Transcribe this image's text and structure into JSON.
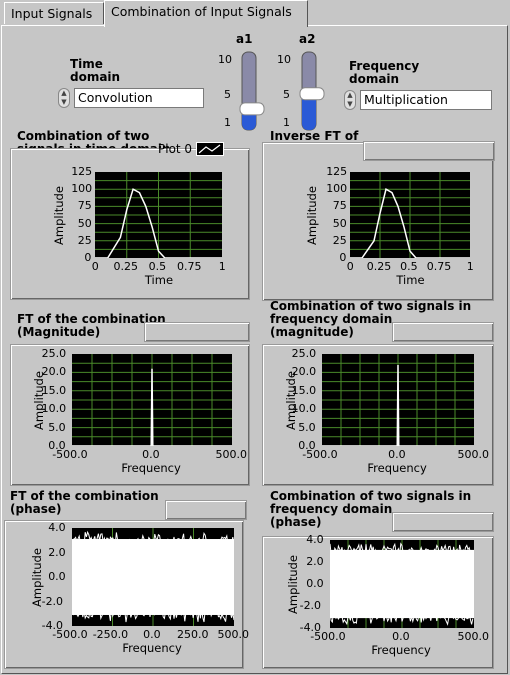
{
  "tabs": [
    {
      "label": "Input Signals",
      "active": false
    },
    {
      "label": "Combination of Input Signals",
      "active": true
    }
  ],
  "controls": {
    "time_domain_label": "Time\ndomain",
    "time_domain_value": "Convolution",
    "freq_domain_label": "Frequency\ndomain",
    "freq_domain_value": "Multiplication",
    "a1": {
      "label": "a1",
      "ticks": [
        "10",
        "5",
        "1"
      ],
      "value": 3
    },
    "a2": {
      "label": "a2",
      "ticks": [
        "10",
        "5",
        "1"
      ],
      "value": 5
    }
  },
  "colors": {
    "plot_bg": "#000000",
    "grid": "#4a8a2a",
    "trace": "#ffffff",
    "slider_fill": "#2a5ad6"
  },
  "charts": [
    {
      "title": "Combination of two\nsignals in time domain",
      "legend": "Plot 0",
      "ylabel": "Amplitude",
      "xlabel": "Time",
      "xticks": [
        "0",
        "0.25",
        "0.5",
        "0.75",
        "1"
      ],
      "yticks": [
        "0",
        "25",
        "50",
        "75",
        "100",
        "125"
      ]
    },
    {
      "title": "Inverse FT of\nthe combination",
      "ylabel": "Amplitude",
      "xlabel": "Time",
      "xticks": [
        "0",
        "0.25",
        "0.5",
        "0.75",
        "1"
      ],
      "yticks": [
        "0",
        "25",
        "50",
        "75",
        "100",
        "125"
      ]
    },
    {
      "title": "FT of the combination\n(Magnitude)",
      "ylabel": "Amplitude",
      "xlabel": "Frequency",
      "xticks": [
        "-500.0",
        "0.0",
        "500.0"
      ],
      "yticks": [
        "0.0",
        "5.0",
        "10.0",
        "15.0",
        "20.0",
        "25.0"
      ]
    },
    {
      "title": "Combination of two signals in\nfrequency domain\n(magnitude)",
      "ylabel": "Amplitude",
      "xlabel": "Frequency",
      "xticks": [
        "-500.0",
        "0.0",
        "500.0"
      ],
      "yticks": [
        "0.0",
        "5.0",
        "10.0",
        "15.0",
        "20.0",
        "25.0"
      ]
    },
    {
      "title": "FT of the combination\n(phase)",
      "ylabel": "Amplitude",
      "xlabel": "Frequency",
      "xticks": [
        "-500.0",
        "-250.0",
        "0.0",
        "250.0",
        "500.0"
      ],
      "yticks": [
        "-4.0",
        "-2.0",
        "0.0",
        "2.0",
        "4.0"
      ]
    },
    {
      "title": "Combination of two signals in\nfrequency domain\n(phase)",
      "ylabel": "Amplitude",
      "xlabel": "Frequency",
      "xticks": [
        "-500.0",
        "0.0",
        "500.0"
      ],
      "yticks": [
        "-4.0",
        "-2.0",
        "0.0",
        "2.0",
        "4.0"
      ]
    }
  ],
  "chart_data": [
    {
      "type": "line",
      "xlim": [
        0,
        1
      ],
      "ylim": [
        0,
        125
      ],
      "grid": true,
      "series": [
        {
          "x": [
            0,
            0.1,
            0.2,
            0.25,
            0.3,
            0.35,
            0.4,
            0.45,
            0.5,
            0.55,
            1
          ],
          "y": [
            0,
            0,
            30,
            70,
            100,
            95,
            75,
            45,
            10,
            0,
            0
          ]
        }
      ]
    },
    {
      "type": "line",
      "xlim": [
        0,
        1
      ],
      "ylim": [
        0,
        125
      ],
      "grid": true,
      "series": [
        {
          "x": [
            0,
            0.1,
            0.2,
            0.25,
            0.3,
            0.35,
            0.4,
            0.45,
            0.5,
            0.55,
            1
          ],
          "y": [
            0,
            0,
            25,
            65,
            100,
            95,
            75,
            45,
            10,
            0,
            0
          ]
        }
      ]
    },
    {
      "type": "line",
      "xlim": [
        -500,
        500
      ],
      "ylim": [
        0,
        25
      ],
      "grid": true,
      "series": [
        {
          "x": [
            -500,
            -5,
            0,
            5,
            500
          ],
          "y": [
            0,
            0,
            21,
            0,
            0
          ]
        }
      ]
    },
    {
      "type": "line",
      "xlim": [
        -500,
        500
      ],
      "ylim": [
        0,
        25
      ],
      "grid": true,
      "series": [
        {
          "x": [
            -500,
            -5,
            0,
            5,
            500
          ],
          "y": [
            0,
            0,
            22,
            0,
            0
          ]
        }
      ]
    },
    {
      "type": "line",
      "xlim": [
        -500,
        500
      ],
      "ylim": [
        -4,
        4
      ],
      "grid": true,
      "series": [
        {
          "name": "noise",
          "band": [
            -3.1,
            3.1
          ]
        }
      ]
    },
    {
      "type": "line",
      "xlim": [
        -500,
        500
      ],
      "ylim": [
        -4,
        4
      ],
      "grid": true,
      "series": [
        {
          "name": "noise",
          "band": [
            -3.1,
            3.1
          ]
        }
      ]
    }
  ]
}
